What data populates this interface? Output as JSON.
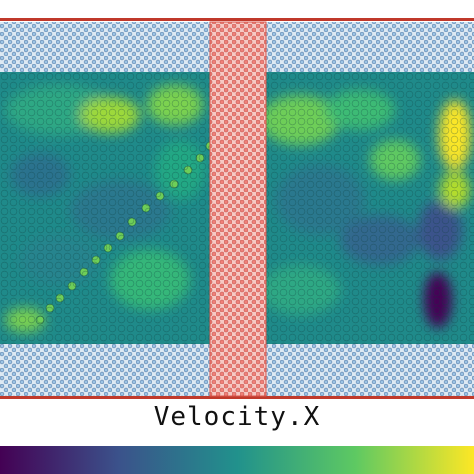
{
  "colorbar": {
    "label": "Velocity.X",
    "colormap": "viridis",
    "gradient_colors": [
      "#440154",
      "#3b528b",
      "#21918c",
      "#5ec962",
      "#fde725"
    ]
  },
  "scene": {
    "boundary_wall_color": "#c0392b",
    "fixed_atom_color": "#9cc3e4",
    "fixed_atom_edge_color": "#5a7fa8",
    "slab_color": "#ef8079",
    "background_field_color": "#21918c"
  }
}
